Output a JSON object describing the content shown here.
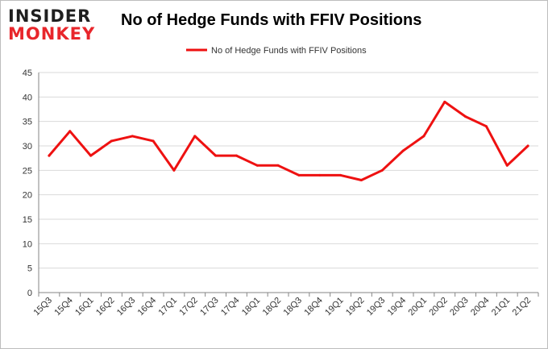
{
  "logo": {
    "line1": "INSIDER",
    "line2": "MONKEY"
  },
  "colors": {
    "series": "#ee1111",
    "grid": "#d9d9d9",
    "axis": "#868686",
    "logo_red": "#e8262b"
  },
  "chart_data": {
    "type": "line",
    "title": "No of Hedge Funds with FFIV Positions",
    "xlabel": "",
    "ylabel": "",
    "ylim": [
      0,
      45
    ],
    "yticks": [
      0,
      5,
      10,
      15,
      20,
      25,
      30,
      35,
      40,
      45
    ],
    "grid": true,
    "legend_position": "top",
    "categories": [
      "15Q3",
      "15Q4",
      "16Q1",
      "16Q2",
      "16Q3",
      "16Q4",
      "17Q1",
      "17Q2",
      "17Q3",
      "17Q4",
      "18Q1",
      "18Q2",
      "18Q3",
      "18Q4",
      "19Q1",
      "19Q2",
      "19Q3",
      "19Q4",
      "20Q1",
      "20Q2",
      "20Q3",
      "20Q4",
      "21Q1",
      "21Q2"
    ],
    "series": [
      {
        "name": "No of Hedge Funds with FFIV Positions",
        "values": [
          28,
          33,
          28,
          31,
          32,
          31,
          25,
          32,
          28,
          28,
          26,
          26,
          24,
          24,
          24,
          23,
          25,
          29,
          32,
          39,
          36,
          34,
          26,
          30
        ]
      }
    ]
  }
}
